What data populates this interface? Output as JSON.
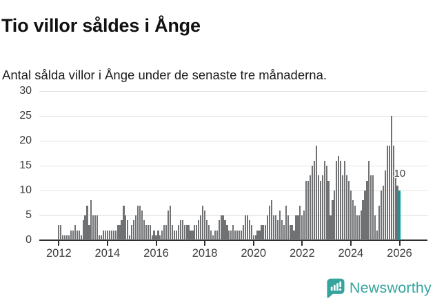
{
  "header": {
    "title": "Tio villor såldes i Ånge",
    "subtitle": "Antal sålda villor i Ånge under de senaste tre månaderna."
  },
  "chart_data": {
    "type": "bar",
    "title": "Tio villor såldes i Ånge",
    "xlabel": "",
    "ylabel": "",
    "frequency": "monthly",
    "x_start": "2012-01",
    "x_end": "2026-01",
    "ylim": [
      0,
      30
    ],
    "y_ticks": [
      0,
      5,
      10,
      15,
      20,
      25,
      30
    ],
    "x_tick_labels": [
      "2012",
      "2014",
      "2016",
      "2018",
      "2020",
      "2022",
      "2024",
      "2026"
    ],
    "grid": "horizontal",
    "legend_position": "none",
    "bar_color": "#6f7173",
    "highlight_color": "#00a0a0",
    "highlight_index": 168,
    "annotation": {
      "text": "10",
      "x": "2026-01",
      "y": 10
    },
    "series": [
      {
        "name": "Antal sålda villor (rullande 3 månader)",
        "values": [
          3,
          3,
          1,
          1,
          1,
          1,
          2,
          2,
          3,
          2,
          2,
          1,
          4,
          5,
          7,
          3,
          8,
          5,
          5,
          5,
          1,
          1,
          2,
          2,
          2,
          2,
          2,
          2,
          2,
          3,
          3,
          4,
          7,
          5,
          4,
          1,
          3,
          4,
          5,
          7,
          7,
          6,
          4,
          3,
          3,
          3,
          1,
          2,
          1,
          2,
          1,
          2,
          3,
          3,
          6,
          7,
          3,
          2,
          2,
          3,
          4,
          4,
          3,
          3,
          3,
          2,
          2,
          3,
          3,
          4,
          5,
          7,
          6,
          4,
          3,
          2,
          1,
          2,
          2,
          4,
          5,
          5,
          4,
          3,
          2,
          2,
          3,
          2,
          2,
          2,
          2,
          3,
          5,
          5,
          4,
          3,
          1,
          1,
          2,
          2,
          3,
          3,
          3,
          5,
          7,
          8,
          5,
          5,
          4,
          6,
          4,
          3,
          7,
          5,
          3,
          3,
          2,
          5,
          5,
          7,
          5,
          6,
          12,
          12,
          13,
          15,
          16,
          19,
          13,
          12,
          13,
          16,
          15,
          12,
          5,
          8,
          10,
          16,
          17,
          16,
          13,
          16,
          13,
          12,
          10,
          8,
          7,
          5,
          5,
          6,
          8,
          10,
          12,
          16,
          13,
          13,
          5,
          2,
          7,
          10,
          11,
          14,
          19,
          19,
          25,
          19,
          13,
          11,
          10
        ]
      }
    ]
  },
  "footer": {
    "logo_text": "Newsworthy",
    "logo_color": "#35a49e"
  }
}
